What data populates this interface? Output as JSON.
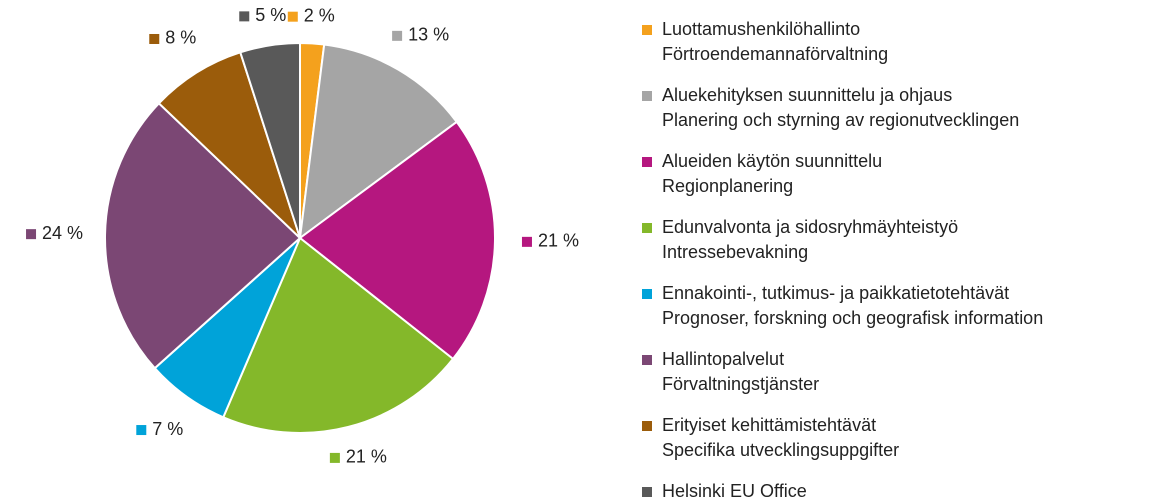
{
  "chart_data": {
    "type": "pie",
    "categories": [
      [
        "Luottamushenkilöhallinto",
        "Förtroendemannaförvaltning"
      ],
      [
        "Aluekehityksen suunnittelu ja ohjaus",
        "Planering och styrning av regionutvecklingen"
      ],
      [
        "Alueiden käytön suunnittelu",
        "Regionplanering"
      ],
      [
        "Edunvalvonta ja sidosryhmäyhteistyö",
        "Intressebevakning"
      ],
      [
        "Ennakointi-, tutkimus- ja paikkatietotehtävät",
        "Prognoser, forskning och geografisk information"
      ],
      [
        "Hallintopalvelut",
        "Förvaltningstjänster"
      ],
      [
        "Erityiset kehittämistehtävät",
        "Specifika utvecklingsuppgifter"
      ],
      [
        "Helsinki EU Office"
      ]
    ],
    "values": [
      2,
      13,
      21,
      21,
      7,
      24,
      8,
      5
    ],
    "value_labels": [
      "2 %",
      "13 %",
      "21 %",
      "21 %",
      "7 %",
      "24 %",
      "8 %",
      "5 %"
    ],
    "colors": [
      "#f4a11d",
      "#a5a5a5",
      "#b5177f",
      "#84b82a",
      "#00a3d9",
      "#7b4774",
      "#9b5c0b",
      "#595959"
    ]
  }
}
